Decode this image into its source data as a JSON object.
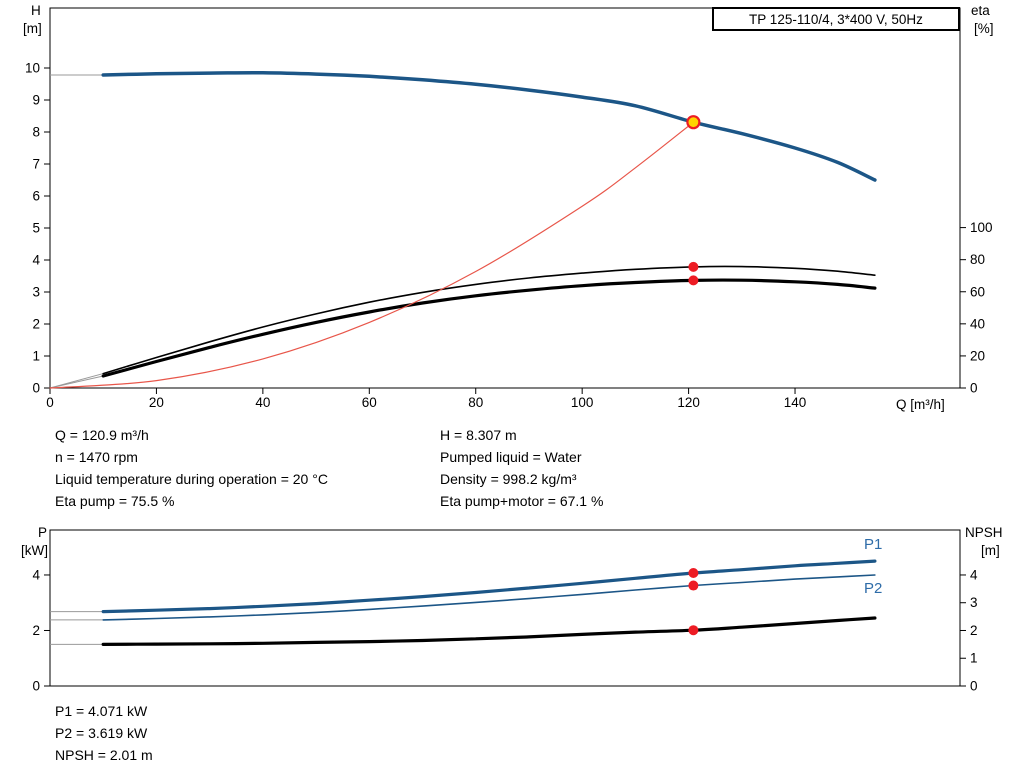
{
  "title_box": "TP 125-110/4, 3*400 V, 50Hz",
  "axis_labels": {
    "h": "H",
    "h_unit": "[m]",
    "eta": "eta",
    "eta_unit": "[%]",
    "q": "Q [m³/h]",
    "p": "P",
    "p_unit": "[kW]",
    "npsh": "NPSH",
    "npsh_unit": "[m]"
  },
  "curve_labels": {
    "p1": "P1",
    "p2": "P2"
  },
  "info_top": {
    "left": [
      "Q = 120.9 m³/h",
      "n = 1470 rpm",
      "Liquid temperature during operation = 20 °C",
      "Eta pump = 75.5 %"
    ],
    "right": [
      "H = 8.307 m",
      "Pumped liquid = Water",
      "Density = 998.2 kg/m³",
      "Eta pump+motor = 67.1 %"
    ]
  },
  "info_bottom": [
    "P1 = 4.071 kW",
    "P2 = 3.619 kW",
    "NPSH = 2.01 m"
  ],
  "colors": {
    "curve_blue": "#1c5687",
    "curve_black": "#000000",
    "system_red": "#e8564a",
    "dot_red": "#ed1c24",
    "duty_yellow": "#ffd400",
    "leader_gray": "#999999",
    "label_blue": "#2e6ca8",
    "axis_black": "#000000"
  },
  "chart_data": [
    {
      "name": "hq-chart",
      "type": "line",
      "title": "TP 125-110/4, 3*400 V, 50Hz",
      "xlabel": "Q [m³/h]",
      "ylabel_left": "H [m]",
      "ylabel_right": "eta [%]",
      "x_range": [
        0,
        171
      ],
      "x_ticks": [
        0,
        20,
        40,
        60,
        80,
        100,
        120,
        140
      ],
      "y_left_range": [
        0,
        11.875
      ],
      "y_left_ticks": [
        0,
        1,
        2,
        3,
        4,
        5,
        6,
        7,
        8,
        9,
        10
      ],
      "y_right_range": [
        0,
        236.9
      ],
      "y_right_ticks": [
        0,
        20,
        40,
        60,
        80,
        100
      ],
      "series": [
        {
          "name": "eta-pump",
          "axis": "right",
          "color": "curve_black",
          "width": 1.6,
          "leader": [
            0,
            0
          ],
          "points": [
            [
              10,
              9
            ],
            [
              20,
              19
            ],
            [
              30,
              28.8
            ],
            [
              40,
              38
            ],
            [
              50,
              46.2
            ],
            [
              60,
              53.5
            ],
            [
              70,
              59.6
            ],
            [
              80,
              64.6
            ],
            [
              90,
              68.6
            ],
            [
              100,
              71.6
            ],
            [
              110,
              74
            ],
            [
              120.9,
              75.5
            ],
            [
              130,
              75.7
            ],
            [
              140,
              74.6
            ],
            [
              148,
              72.8
            ],
            [
              155,
              70.3
            ]
          ]
        },
        {
          "name": "eta-pump-motor",
          "axis": "right",
          "color": "curve_black",
          "width": 3.2,
          "leader": [
            0,
            0
          ],
          "points": [
            [
              10,
              7.5
            ],
            [
              20,
              16.5
            ],
            [
              30,
              25.3
            ],
            [
              40,
              33.5
            ],
            [
              50,
              40.9
            ],
            [
              60,
              47.4
            ],
            [
              70,
              53
            ],
            [
              80,
              57.5
            ],
            [
              90,
              61
            ],
            [
              100,
              63.8
            ],
            [
              110,
              65.8
            ],
            [
              120.9,
              67.1
            ],
            [
              130,
              67.2
            ],
            [
              140,
              66.2
            ],
            [
              148,
              64.6
            ],
            [
              155,
              62.3
            ]
          ]
        },
        {
          "name": "system-curve",
          "axis": "left",
          "color": "system_red",
          "width": 1.2,
          "points": [
            [
              0,
              0
            ],
            [
              20,
              0.23
            ],
            [
              40,
              0.91
            ],
            [
              60,
              2.05
            ],
            [
              80,
              3.64
            ],
            [
              100,
              5.68
            ],
            [
              110,
              6.88
            ],
            [
              120.9,
              8.307
            ]
          ]
        },
        {
          "name": "H",
          "axis": "left",
          "color": "curve_blue",
          "width": 3.5,
          "leader": [
            0,
            9.78
          ],
          "points": [
            [
              10,
              9.78
            ],
            [
              20,
              9.82
            ],
            [
              30,
              9.84
            ],
            [
              40,
              9.85
            ],
            [
              50,
              9.81
            ],
            [
              60,
              9.74
            ],
            [
              70,
              9.63
            ],
            [
              80,
              9.49
            ],
            [
              90,
              9.31
            ],
            [
              100,
              9.09
            ],
            [
              110,
              8.82
            ],
            [
              120.9,
              8.307
            ],
            [
              130,
              7.95
            ],
            [
              140,
              7.5
            ],
            [
              148,
              7.05
            ],
            [
              155,
              6.5
            ]
          ]
        }
      ],
      "markers": [
        {
          "name": "duty-point",
          "x": 120.9,
          "y": 8.307,
          "axis": "left",
          "r": 6,
          "fill": "duty_yellow",
          "stroke": "dot_red",
          "stroke_width": 2.2
        },
        {
          "name": "eta-pump-point",
          "x": 120.9,
          "y": 75.5,
          "axis": "right",
          "r": 5,
          "fill": "dot_red"
        },
        {
          "name": "eta-pump-motor-point",
          "x": 120.9,
          "y": 67.1,
          "axis": "right",
          "r": 5,
          "fill": "dot_red"
        }
      ]
    },
    {
      "name": "power-npsh-chart",
      "type": "line",
      "xlabel": "",
      "ylabel_left": "P [kW]",
      "ylabel_right": "NPSH [m]",
      "x_range": [
        0,
        171
      ],
      "x_ticks": [],
      "y_left_range": [
        0,
        5.62
      ],
      "y_left_ticks": [
        0,
        2,
        4
      ],
      "y_right_range": [
        0,
        5.62
      ],
      "y_right_ticks": [
        0,
        1,
        2,
        3,
        4
      ],
      "series": [
        {
          "name": "P2",
          "axis": "left",
          "color": "curve_blue",
          "width": 1.6,
          "leader": [
            0,
            2.38
          ],
          "points": [
            [
              10,
              2.38
            ],
            [
              20,
              2.43
            ],
            [
              30,
              2.49
            ],
            [
              40,
              2.56
            ],
            [
              50,
              2.65
            ],
            [
              60,
              2.76
            ],
            [
              70,
              2.88
            ],
            [
              80,
              3.01
            ],
            [
              90,
              3.15
            ],
            [
              100,
              3.3
            ],
            [
              110,
              3.46
            ],
            [
              120.9,
              3.619
            ],
            [
              130,
              3.73
            ],
            [
              140,
              3.85
            ],
            [
              148,
              3.93
            ],
            [
              155,
              4.0
            ]
          ]
        },
        {
          "name": "P1",
          "axis": "left",
          "color": "curve_blue",
          "width": 3.2,
          "leader": [
            0,
            2.68
          ],
          "points": [
            [
              10,
              2.68
            ],
            [
              20,
              2.73
            ],
            [
              30,
              2.79
            ],
            [
              40,
              2.87
            ],
            [
              50,
              2.97
            ],
            [
              60,
              3.09
            ],
            [
              70,
              3.22
            ],
            [
              80,
              3.37
            ],
            [
              90,
              3.53
            ],
            [
              100,
              3.7
            ],
            [
              110,
              3.88
            ],
            [
              120.9,
              4.071
            ],
            [
              130,
              4.19
            ],
            [
              140,
              4.33
            ],
            [
              148,
              4.42
            ],
            [
              155,
              4.5
            ]
          ]
        },
        {
          "name": "NPSH",
          "axis": "right",
          "color": "curve_black",
          "width": 3.2,
          "leader": [
            0,
            1.5
          ],
          "points": [
            [
              10,
              1.5
            ],
            [
              20,
              1.51
            ],
            [
              30,
              1.52
            ],
            [
              40,
              1.54
            ],
            [
              50,
              1.57
            ],
            [
              60,
              1.6
            ],
            [
              70,
              1.64
            ],
            [
              80,
              1.7
            ],
            [
              90,
              1.77
            ],
            [
              100,
              1.86
            ],
            [
              110,
              1.94
            ],
            [
              120.9,
              2.01
            ],
            [
              130,
              2.12
            ],
            [
              140,
              2.25
            ],
            [
              148,
              2.36
            ],
            [
              155,
              2.45
            ]
          ]
        }
      ],
      "markers": [
        {
          "name": "p1-point",
          "x": 120.9,
          "y": 4.071,
          "axis": "left",
          "r": 5,
          "fill": "dot_red"
        },
        {
          "name": "p2-point",
          "x": 120.9,
          "y": 3.619,
          "axis": "left",
          "r": 5,
          "fill": "dot_red"
        },
        {
          "name": "npsh-point",
          "x": 120.9,
          "y": 2.01,
          "axis": "right",
          "r": 5,
          "fill": "dot_red"
        }
      ]
    }
  ]
}
